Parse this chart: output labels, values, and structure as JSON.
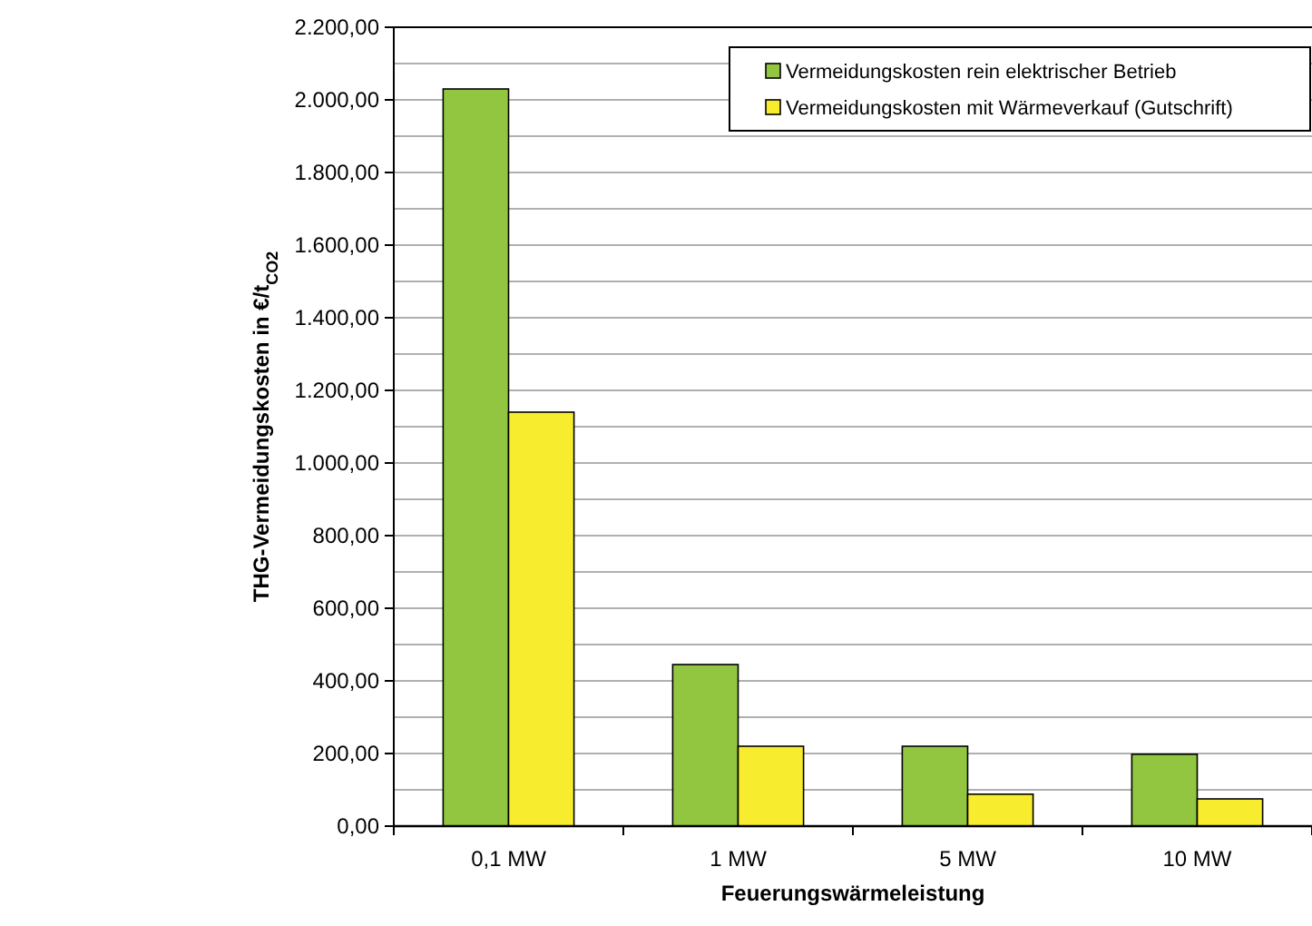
{
  "chart_data": {
    "type": "bar",
    "xlabel": "Feuerungswärmeleistung",
    "ylabel": "THG-Vermeidungskosten in €/t$_{CO2}$",
    "categories": [
      "0,1 MW",
      "1 MW",
      "5 MW",
      "10 MW"
    ],
    "series": [
      {
        "name": "Vermeidungskosten rein elektrischer Betrieb",
        "color": "#92c640",
        "values": [
          2030,
          445,
          220,
          198
        ]
      },
      {
        "name": "Vermeidungskosten mit Wärmeverkauf (Gutschrift)",
        "color": "#f8ec2e",
        "values": [
          1140,
          220,
          88,
          75
        ]
      }
    ],
    "ylim": [
      0,
      2200
    ],
    "yticks": [
      {
        "value": 0,
        "label": "0,00"
      },
      {
        "value": 100,
        "label": null
      },
      {
        "value": 200,
        "label": "200,00"
      },
      {
        "value": 300,
        "label": null
      },
      {
        "value": 400,
        "label": "400,00"
      },
      {
        "value": 500,
        "label": null
      },
      {
        "value": 600,
        "label": "600,00"
      },
      {
        "value": 700,
        "label": null
      },
      {
        "value": 800,
        "label": "800,00"
      },
      {
        "value": 900,
        "label": null
      },
      {
        "value": 1000,
        "label": "1.000,00"
      },
      {
        "value": 1100,
        "label": null
      },
      {
        "value": 1200,
        "label": "1.200,00"
      },
      {
        "value": 1300,
        "label": null
      },
      {
        "value": 1400,
        "label": "1.400,00"
      },
      {
        "value": 1500,
        "label": null
      },
      {
        "value": 1600,
        "label": "1.600,00"
      },
      {
        "value": 1700,
        "label": null
      },
      {
        "value": 1800,
        "label": "1.800,00"
      },
      {
        "value": 1900,
        "label": null
      },
      {
        "value": 2000,
        "label": "2.000,00"
      },
      {
        "value": 2100,
        "label": null
      },
      {
        "value": 2200,
        "label": "2.200,00"
      }
    ],
    "grid": "y",
    "legend": "top right"
  }
}
